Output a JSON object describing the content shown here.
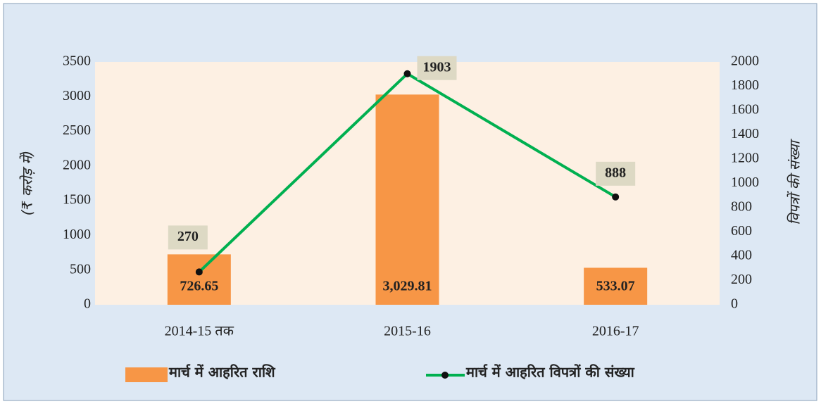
{
  "chart_data": {
    "type": "bar-line",
    "categories": [
      "2014-15 तक",
      "2015-16",
      "2016-17"
    ],
    "series": [
      {
        "name": "मार्च में आहरित राशि",
        "color": "#f79646",
        "type": "bar",
        "values": [
          726.65,
          3029.81,
          533.07
        ],
        "value_labels": [
          "726.65",
          "3,029.81",
          "533.07"
        ]
      },
      {
        "name": "मार्च में आहरित विपत्रों की संख्या",
        "color": "#00b050",
        "type": "line",
        "axis": "y2",
        "values": [
          270,
          1903,
          888
        ]
      }
    ],
    "ylabel": "(₹ करोड़ में)",
    "y2label": "विपत्रों की संख्या",
    "ylim": [
      0,
      3500
    ],
    "yticks": [
      0,
      500,
      1000,
      1500,
      2000,
      2500,
      3000,
      3500
    ],
    "y2lim": [
      0,
      2000
    ],
    "y2ticks": [
      0,
      200,
      400,
      600,
      800,
      1000,
      1200,
      1400,
      1600,
      1800,
      2000
    ]
  }
}
